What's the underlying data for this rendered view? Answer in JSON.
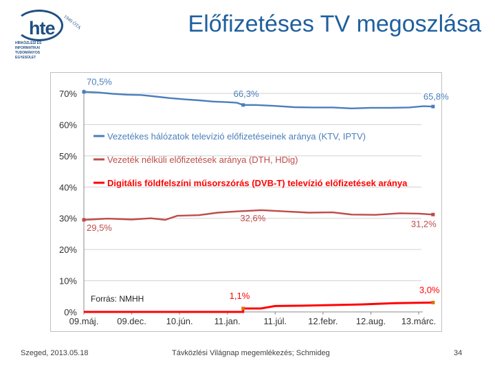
{
  "logo": {
    "word": "hte",
    "since": "1949 ÓTA",
    "lines": [
      "HÍRKÖZLÉSI ÉS",
      "INFORMATIKAI",
      "TUDOMÁNYOS",
      "EGYESÜLET"
    ]
  },
  "title": "Előfizetéses TV megoszlása",
  "footer": {
    "left": "Szeged, 2013.05.18",
    "center": "Távközlési Világnap megemlékezés; Schmideg",
    "page": "34"
  },
  "chart_data": {
    "type": "line",
    "source": "Forrás: NMHH",
    "x_labels": [
      "09.máj.",
      "09.dec.",
      "10.jún.",
      "11.jan.",
      "11.júl.",
      "12.febr.",
      "12.aug.",
      "13.márc."
    ],
    "ylim": [
      0,
      70
    ],
    "y_ticks": [
      "0%",
      "10%",
      "20%",
      "30%",
      "40%",
      "50%",
      "60%",
      "70%"
    ],
    "y_tick_values": [
      0,
      10,
      20,
      30,
      40,
      50,
      60,
      70
    ],
    "colors": {
      "blue": "#4a7ebb",
      "darkred": "#be4b48",
      "red": "#ff0000",
      "grid": "#d0d0d0"
    },
    "series": [
      {
        "name": "Vezetékes hálózatok televízió előfizetéseinek aránya (KTV, IPTV)",
        "color": "#4a7ebb",
        "points": [
          [
            0,
            70.5
          ],
          [
            0.3,
            70.3
          ],
          [
            0.6,
            69.9
          ],
          [
            0.9,
            69.6
          ],
          [
            1.2,
            69.5
          ],
          [
            1.5,
            69.0
          ],
          [
            1.8,
            68.5
          ],
          [
            2.1,
            68.1
          ],
          [
            2.4,
            67.8
          ],
          [
            2.7,
            67.4
          ],
          [
            3.0,
            67.2
          ],
          [
            3.2,
            67.0
          ],
          [
            3.33,
            66.3
          ],
          [
            3.6,
            66.3
          ],
          [
            4.0,
            66.0
          ],
          [
            4.4,
            65.6
          ],
          [
            4.8,
            65.5
          ],
          [
            5.2,
            65.5
          ],
          [
            5.6,
            65.2
          ],
          [
            6.0,
            65.4
          ],
          [
            6.4,
            65.4
          ],
          [
            6.8,
            65.5
          ],
          [
            7.1,
            65.9
          ],
          [
            7.3,
            65.8
          ]
        ],
        "labels": [
          {
            "text": "70,5%",
            "xi": 0,
            "y": 70.5,
            "dx": 4,
            "dy": -10
          },
          {
            "text": "66,3%",
            "xi": 3.33,
            "y": 66.3,
            "dx": -14,
            "dy": -12
          },
          {
            "text": "65,8%",
            "xi": 7.3,
            "y": 65.8,
            "dx": -14,
            "dy": -10
          }
        ]
      },
      {
        "name": "Vezeték nélküli előfizetések aránya (DTH, HDig)",
        "color": "#be4b48",
        "points": [
          [
            0,
            29.5
          ],
          [
            0.5,
            29.9
          ],
          [
            1.0,
            29.6
          ],
          [
            1.4,
            30.0
          ],
          [
            1.7,
            29.5
          ],
          [
            1.95,
            30.8
          ],
          [
            2.4,
            31.0
          ],
          [
            2.8,
            31.8
          ],
          [
            3.2,
            32.2
          ],
          [
            3.7,
            32.6
          ],
          [
            4.2,
            32.2
          ],
          [
            4.7,
            31.8
          ],
          [
            5.2,
            31.9
          ],
          [
            5.6,
            31.2
          ],
          [
            6.1,
            31.1
          ],
          [
            6.6,
            31.6
          ],
          [
            7.0,
            31.5
          ],
          [
            7.3,
            31.2
          ]
        ],
        "labels": [
          {
            "text": "29,5%",
            "xi": 0,
            "y": 29.5,
            "dx": 4,
            "dy": 16
          },
          {
            "text": "32,6%",
            "xi": 3.7,
            "y": 32.6,
            "dx": -30,
            "dy": 16
          },
          {
            "text": "31,2%",
            "xi": 7.3,
            "y": 31.2,
            "dx": -32,
            "dy": 18
          }
        ]
      },
      {
        "name": "Digitális földfelszíni műsorszórás (DVB-T) televízió előfizetések aránya",
        "color": "#ff0000",
        "points": [
          [
            0,
            0
          ],
          [
            3.33,
            0
          ],
          [
            3.33,
            1.1
          ],
          [
            3.7,
            1.1
          ],
          [
            4.0,
            1.9
          ],
          [
            4.6,
            2.0
          ],
          [
            5.2,
            2.2
          ],
          [
            5.8,
            2.4
          ],
          [
            6.5,
            2.8
          ],
          [
            7.3,
            3.0
          ]
        ],
        "labels": [
          {
            "text": "1,1%",
            "xi": 3.33,
            "y": 1.1,
            "dx": -20,
            "dy": -14
          },
          {
            "text": "3,0%",
            "xi": 7.3,
            "y": 3.0,
            "dx": -20,
            "dy": -14
          }
        ]
      }
    ]
  }
}
